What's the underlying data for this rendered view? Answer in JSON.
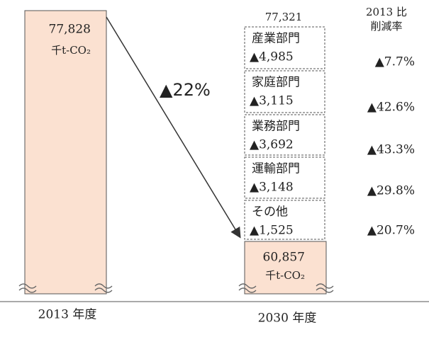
{
  "left": {
    "value": "77,828",
    "unit": "千t-CO₂",
    "year": "2013 年度"
  },
  "reduction": "▲22%",
  "top_total": "77,321",
  "rate_header": [
    "2013 比",
    "削減率"
  ],
  "sectors": [
    {
      "name": "産業部門",
      "amount": "▲4,985",
      "rate": "▲7.7%"
    },
    {
      "name": "家庭部門",
      "amount": "▲3,115",
      "rate": "▲42.6%"
    },
    {
      "name": "業務部門",
      "amount": "▲3,692",
      "rate": "▲43.3%"
    },
    {
      "name": "運輸部門",
      "amount": "▲3,148",
      "rate": "▲29.8%"
    },
    {
      "name": "その他",
      "amount": "▲1,525",
      "rate": "▲20.7%"
    }
  ],
  "right": {
    "value": "60,857",
    "unit": "千t-CO₂",
    "year": "2030 年度"
  }
}
